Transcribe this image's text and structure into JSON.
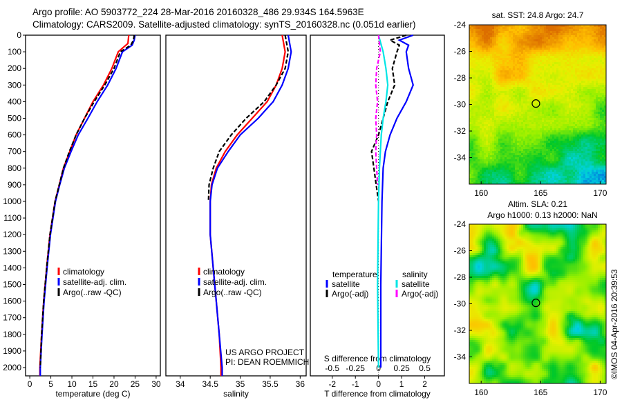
{
  "title_line1": "Argo profile: AO 5903772_224 28-Mar-2016 20160328_486 29.934S 164.5963E",
  "title_line2": "Climatology: CARS2009. Satellite-adjusted climatology: synTS_20160328.nc (0.051d earlier)",
  "credit": "©IMOS 04-Apr-2016 20:39:53",
  "project_line1": "US ARGO PROJECT",
  "project_line2": "PI: DEAN ROEMMICH",
  "colors": {
    "climatology": "#ff0000",
    "satellite": "#0000ff",
    "argo": "#000000",
    "sal_satellite": "#00e5e5",
    "sal_argo": "#ff00ff"
  },
  "chart_data": [
    {
      "type": "line",
      "name": "temperature",
      "xlabel": "temperature (deg C)",
      "xlim": [
        -1,
        31
      ],
      "ylim": [
        2050,
        0
      ],
      "xticks": [
        "0",
        "5",
        "10",
        "15",
        "20",
        "25",
        "30"
      ],
      "xtick_values": [
        0,
        5,
        10,
        15,
        20,
        25,
        30
      ],
      "yticks": [
        "0",
        "100",
        "200",
        "300",
        "400",
        "500",
        "600",
        "700",
        "800",
        "900",
        "1000",
        "1100",
        "1200",
        "1300",
        "1400",
        "1500",
        "1600",
        "1700",
        "1800",
        "1900",
        "2000"
      ],
      "legend": [
        "climatology",
        "satellite-adj. clim.",
        "Argo(..raw -QC)"
      ],
      "series": [
        {
          "name": "climatology",
          "color": "#ff0000",
          "depth": [
            0,
            50,
            100,
            200,
            300,
            400,
            500,
            600,
            700,
            800,
            900,
            1000,
            1200,
            1400,
            1600,
            1800,
            2000,
            2050
          ],
          "values": [
            23.5,
            23.3,
            21,
            19.5,
            17.5,
            15,
            13,
            11,
            9.5,
            8,
            7,
            6,
            4.8,
            4,
            3.3,
            2.8,
            2.4,
            2.4
          ]
        },
        {
          "name": "satellite-adj. clim.",
          "color": "#0000ff",
          "depth": [
            0,
            30,
            60,
            100,
            200,
            300,
            400,
            500,
            600,
            700,
            800,
            900,
            1000,
            1200,
            1400,
            1600,
            1800,
            2000,
            2050
          ],
          "values": [
            25,
            24.8,
            24.3,
            22,
            20.5,
            18.5,
            16,
            13.8,
            11.5,
            9.8,
            8.2,
            7.1,
            6.1,
            4.9,
            4.1,
            3.4,
            2.9,
            2.5,
            2.5
          ]
        },
        {
          "name": "Argo(..raw -QC)",
          "color": "#000000",
          "dash": true,
          "depth": [
            0,
            30,
            60,
            100,
            200,
            300,
            400,
            500,
            600,
            700,
            800,
            900,
            1000,
            1200,
            1400,
            1600,
            1800,
            2000
          ],
          "values": [
            24.8,
            24.6,
            24,
            21.5,
            20,
            17.8,
            15.3,
            13,
            11,
            9.4,
            8,
            7,
            6,
            4.8,
            4,
            3.3,
            2.8,
            2.5
          ]
        }
      ]
    },
    {
      "type": "line",
      "name": "salinity",
      "xlabel": "salinity",
      "xlim": [
        33.8,
        36.1
      ],
      "ylim": [
        2050,
        0
      ],
      "xticks": [
        "34",
        "34.5",
        "35",
        "35.5",
        "36"
      ],
      "xtick_values": [
        34,
        34.5,
        35,
        35.5,
        36
      ],
      "legend": [
        "climatology",
        "satellite-adj. clim.",
        "Argo(..raw -QC)"
      ],
      "series": [
        {
          "name": "climatology",
          "color": "#ff0000",
          "depth": [
            0,
            100,
            200,
            300,
            400,
            500,
            600,
            700,
            800,
            900,
            1000,
            1200,
            1400,
            1600,
            1800,
            2000,
            2050
          ],
          "values": [
            35.7,
            35.75,
            35.7,
            35.6,
            35.45,
            35.2,
            34.95,
            34.75,
            34.6,
            34.52,
            34.5,
            34.5,
            34.55,
            34.6,
            34.65,
            34.68,
            34.68
          ]
        },
        {
          "name": "satellite-adj. clim.",
          "color": "#0000ff",
          "depth": [
            0,
            100,
            200,
            300,
            400,
            500,
            600,
            700,
            800,
            900,
            1000,
            1200,
            1400,
            1600,
            1800,
            2000,
            2050
          ],
          "values": [
            35.8,
            35.85,
            35.8,
            35.7,
            35.55,
            35.3,
            35.0,
            34.8,
            34.62,
            34.53,
            34.5,
            34.5,
            34.55,
            34.6,
            34.65,
            34.7,
            34.7
          ]
        },
        {
          "name": "Argo(..raw -QC)",
          "color": "#000000",
          "dash": true,
          "depth": [
            0,
            100,
            200,
            300,
            400,
            500,
            600,
            700,
            800,
            900,
            1000
          ],
          "values": [
            35.75,
            35.8,
            35.75,
            35.6,
            35.4,
            35.1,
            34.85,
            34.65,
            34.55,
            34.48,
            34.47
          ]
        }
      ]
    },
    {
      "type": "line",
      "name": "difference",
      "xlabel": "T difference from climatology",
      "x2label": "S difference from climatology",
      "xlim": [
        -2.5,
        2.8
      ],
      "ylim": [
        2050,
        0
      ],
      "xticks": [
        "-2",
        "-1",
        "0",
        "1",
        "2"
      ],
      "xtick_values": [
        -2,
        -1,
        0,
        1,
        2
      ],
      "x2ticks": [
        "-0.5",
        "-0.25",
        "0",
        "0.25",
        "0.5"
      ],
      "x2tick_values": [
        -0.5,
        -0.25,
        0,
        0.25,
        0.5
      ],
      "legend_temperature": {
        "title": "temperature",
        "items": [
          "satellite",
          "Argo(-adj)"
        ]
      },
      "legend_salinity": {
        "title": "salinity",
        "items": [
          "satellite",
          "Argo(-adj)"
        ]
      },
      "series": [
        {
          "name": "T satellite",
          "axis": "T",
          "color": "#0000ff",
          "depth": [
            0,
            30,
            60,
            100,
            200,
            300,
            400,
            500,
            600,
            700,
            800,
            1000,
            1500,
            2000
          ],
          "values": [
            1.5,
            0.9,
            1.3,
            1.2,
            1.3,
            1.5,
            1.2,
            0.8,
            0.5,
            0.3,
            0.2,
            0.15,
            0.1,
            0.1
          ]
        },
        {
          "name": "T Argo(-adj)",
          "axis": "T",
          "color": "#000000",
          "dash": true,
          "depth": [
            0,
            30,
            60,
            100,
            200,
            300,
            400,
            500,
            600,
            700,
            800,
            900,
            1000
          ],
          "values": [
            1.2,
            0.5,
            0.9,
            0.8,
            0.6,
            0.7,
            0.4,
            0.2,
            0,
            -0.3,
            -0.2,
            -0.1,
            0
          ]
        },
        {
          "name": "S satellite",
          "axis": "S",
          "color": "#00e5e5",
          "depth": [
            0,
            100,
            200,
            300,
            400,
            500,
            600,
            800,
            1000,
            1500,
            2000
          ],
          "values": [
            0,
            0.05,
            0.08,
            0.1,
            0.08,
            0.05,
            0.03,
            0.01,
            0,
            -0.01,
            0
          ]
        },
        {
          "name": "S Argo(-adj)",
          "axis": "S",
          "color": "#ff00ff",
          "dash": true,
          "depth": [
            0,
            100,
            200,
            300,
            400,
            500,
            600,
            700,
            800,
            900
          ],
          "values": [
            0,
            0.02,
            -0.02,
            -0.03,
            -0.01,
            -0.03,
            -0.02,
            -0.03,
            -0.02,
            -0.01
          ]
        }
      ]
    }
  ],
  "maps": [
    {
      "title": "sat. SST: 24.8 Argo: 24.7",
      "lon_ticks": [
        "160",
        "165",
        "170"
      ],
      "lat_ticks": [
        "-24",
        "-26",
        "-28",
        "-30",
        "-32",
        "-34"
      ],
      "argo_lon": 164.6,
      "argo_lat": -29.93
    },
    {
      "title_line1": "Altim. SLA: 0.21",
      "title_line2": "Argo h1000: 0.13 h2000: NaN",
      "lon_ticks": [
        "160",
        "165",
        "170"
      ],
      "lat_ticks": [
        "-24",
        "-26",
        "-28",
        "-30",
        "-32",
        "-34"
      ],
      "argo_lon": 164.6,
      "argo_lat": -29.93
    }
  ]
}
